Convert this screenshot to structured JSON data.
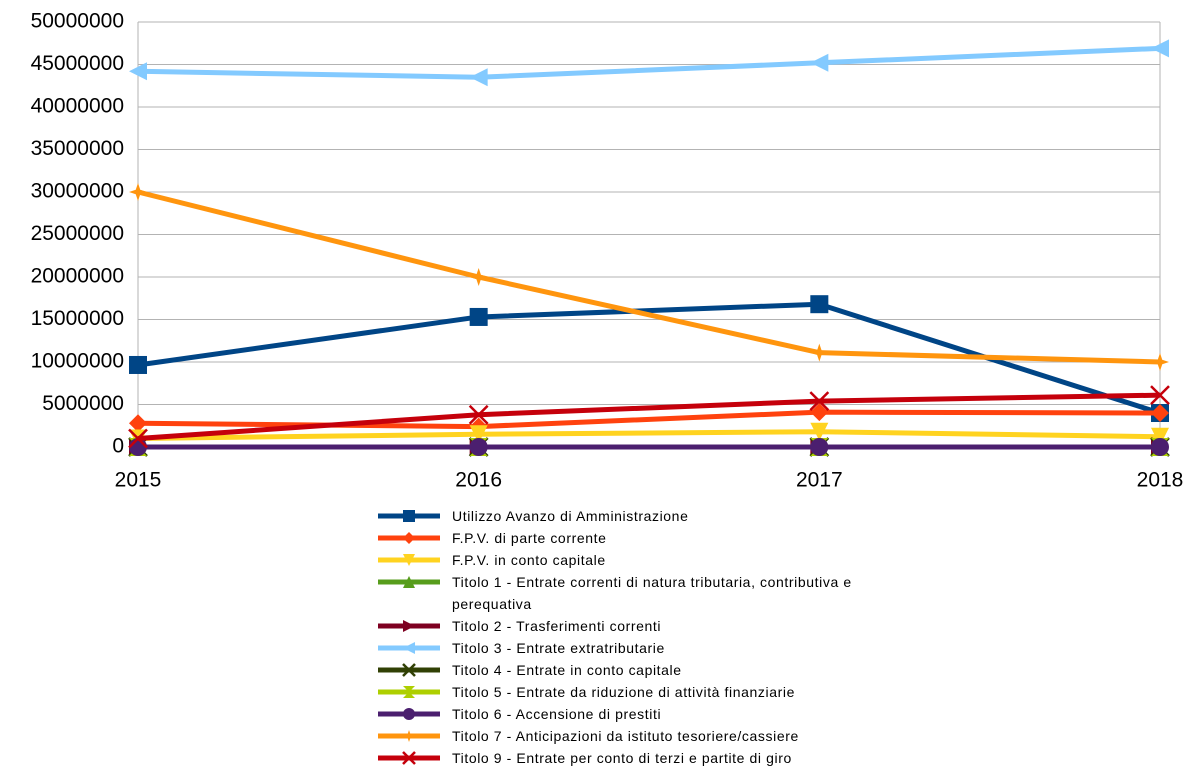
{
  "chart_data": {
    "type": "line",
    "categories": [
      "2015",
      "2016",
      "2017",
      "2018"
    ],
    "ylim": [
      0,
      50000000
    ],
    "yticks": [
      0,
      5000000,
      10000000,
      15000000,
      20000000,
      25000000,
      30000000,
      35000000,
      40000000,
      45000000,
      50000000
    ],
    "grid": true,
    "legend": "bottom",
    "series": [
      {
        "name": "Utilizzo Avanzo di Amministrazione",
        "color": "#004586",
        "marker": "square",
        "values": [
          9650000,
          15300000,
          16800000,
          4000000
        ]
      },
      {
        "name": "F.P.V. di parte corrente",
        "color": "#ff420e",
        "marker": "diamond",
        "values": [
          2800000,
          2400000,
          4100000,
          4000000
        ]
      },
      {
        "name": "F.P.V. in conto capitale",
        "color": "#ffd320",
        "marker": "triangle-down",
        "values": [
          1000000,
          1500000,
          1800000,
          1200000
        ]
      },
      {
        "name": "Titolo 1 - Entrate correnti di natura tributaria, contributiva e\nperequativa",
        "color": "#579d1c",
        "marker": "triangle-up",
        "values": [
          0,
          0,
          0,
          0
        ]
      },
      {
        "name": "Titolo 2 - Trasferimenti correnti",
        "color": "#7e0021",
        "marker": "triangle-right",
        "values": [
          0,
          0,
          0,
          0
        ]
      },
      {
        "name": "Titolo 3 - Entrate extratributarie",
        "color": "#83caff",
        "marker": "triangle-left",
        "values": [
          44200000,
          43500000,
          45200000,
          46900000
        ]
      },
      {
        "name": "Titolo 4 - Entrate in conto capitale",
        "color": "#314004",
        "marker": "x",
        "values": [
          0,
          0,
          0,
          0
        ]
      },
      {
        "name": "Titolo 5 - Entrate da riduzione di attività finanziarie",
        "color": "#aecf00",
        "marker": "hourglass",
        "values": [
          0,
          0,
          0,
          0
        ]
      },
      {
        "name": "Titolo 6 - Accensione di prestiti",
        "color": "#4b1f6f",
        "marker": "circle",
        "values": [
          0,
          0,
          0,
          0
        ]
      },
      {
        "name": "Titolo 7 - Anticipazioni da istituto tesoriere/cassiere",
        "color": "#ff950e",
        "marker": "star",
        "values": [
          30000000,
          20000000,
          11100000,
          10000000
        ]
      },
      {
        "name": "Titolo 9 - Entrate per conto di terzi e partite di giro",
        "color": "#c5000b",
        "marker": "x",
        "values": [
          1000000,
          3800000,
          5400000,
          6100000
        ]
      }
    ]
  }
}
